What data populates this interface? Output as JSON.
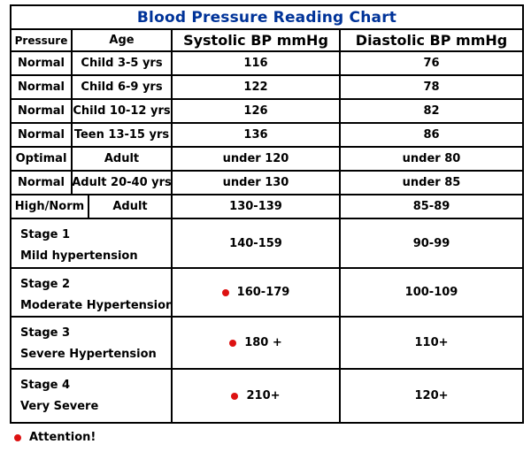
{
  "colors": {
    "title_text": "#003399",
    "alert_red": "#dd1111",
    "table_border": "#000000",
    "body_text": "#000000",
    "background": "#ffffff"
  },
  "chart_data": {
    "type": "table",
    "title": "Blood Pressure Reading Chart",
    "columns": [
      "Pressure",
      "Age",
      "Systolic BP mmHg",
      "Diastolic BP mmHg"
    ],
    "rows": [
      {
        "pressure": "Normal",
        "age": "Child 3-5 yrs",
        "systolic": "116",
        "diastolic": "76"
      },
      {
        "pressure": "Normal",
        "age": "Child 6-9 yrs",
        "systolic": "122",
        "diastolic": "78"
      },
      {
        "pressure": "Normal",
        "age": "Child 10-12 yrs",
        "systolic": "126",
        "diastolic": "82"
      },
      {
        "pressure": "Normal",
        "age": "Teen 13-15 yrs",
        "systolic": "136",
        "diastolic": "86"
      },
      {
        "pressure": "Optimal",
        "age": "Adult",
        "systolic": "under 120",
        "diastolic": "under 80"
      },
      {
        "pressure": "Normal",
        "age": "Adult 20-40 yrs",
        "systolic": "under 130",
        "diastolic": "under 85"
      },
      {
        "pressure": "High/Norm",
        "age": "Adult",
        "systolic": "130-139",
        "diastolic": "85-89"
      }
    ],
    "stage_rows": [
      {
        "stage": "Stage 1",
        "description": "Mild hypertension",
        "systolic": "140-159",
        "diastolic": "90-99",
        "alert_dot": false
      },
      {
        "stage": "Stage 2",
        "description": "Moderate Hypertension",
        "systolic": "160-179",
        "diastolic": "100-109",
        "alert_dot": true
      },
      {
        "stage": "Stage 3",
        "description": "Severe Hypertension",
        "systolic": "180 +",
        "diastolic": "110+",
        "alert_dot": true
      },
      {
        "stage": "Stage 4",
        "description": "Very Severe",
        "systolic": "210+",
        "diastolic": "120+",
        "alert_dot": true
      }
    ],
    "footer_note": "Attention!"
  }
}
